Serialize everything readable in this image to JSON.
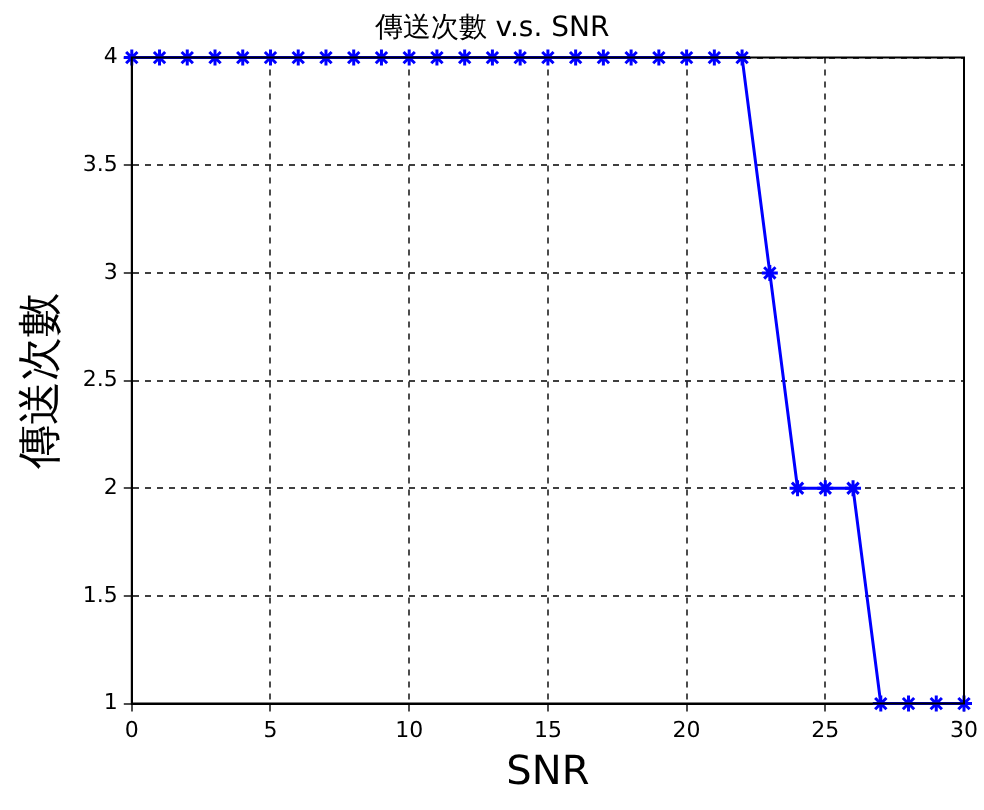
{
  "chart_data": {
    "type": "line",
    "title": "傳送次數 v.s. SNR",
    "xlabel": "SNR",
    "ylabel": "傳送次數",
    "x": [
      0,
      1,
      2,
      3,
      4,
      5,
      6,
      7,
      8,
      9,
      10,
      11,
      12,
      13,
      14,
      15,
      16,
      17,
      18,
      19,
      20,
      21,
      22,
      23,
      24,
      25,
      26,
      27,
      28,
      29,
      30
    ],
    "series": [
      {
        "color": "#0000ff",
        "values": [
          4,
          4,
          4,
          4,
          4,
          4,
          4,
          4,
          4,
          4,
          4,
          4,
          4,
          4,
          4,
          4,
          4,
          4,
          4,
          4,
          4,
          4,
          4,
          3,
          2,
          2,
          2,
          1,
          1,
          1,
          1
        ]
      }
    ],
    "xlim": [
      0,
      30
    ],
    "xticks": [
      0,
      5,
      10,
      15,
      20,
      25,
      30
    ],
    "ylim": [
      1,
      4
    ],
    "yticks": [
      1,
      1.5,
      2,
      2.5,
      3,
      3.5,
      4
    ],
    "grid": true,
    "legend": false,
    "marker": "cross",
    "line_style": "solid"
  }
}
